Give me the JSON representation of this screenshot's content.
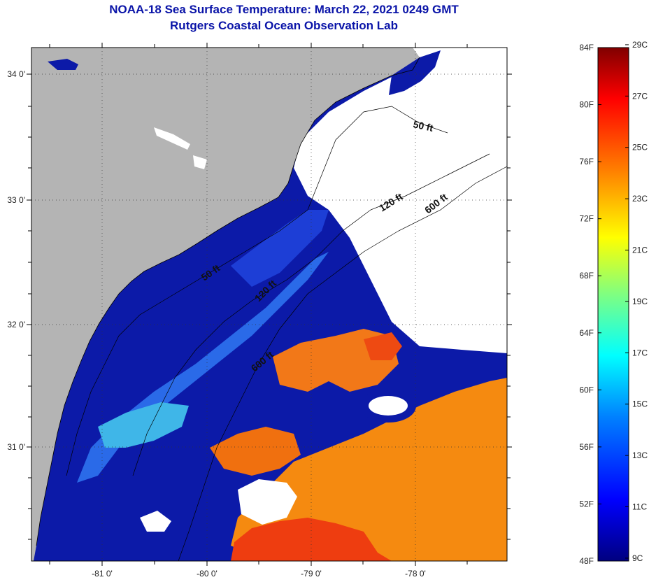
{
  "title": {
    "line1": "NOAA-18 Sea Surface Temperature:  March 22, 2021 0249 GMT",
    "line2": "Rutgers Coastal Ocean Observation Lab"
  },
  "map": {
    "lat_labels": [
      "34 0'",
      "33 0'",
      "32 0'",
      "31 0'"
    ],
    "lon_labels": [
      "-81 0'",
      "-80 0'",
      "-79 0'",
      "-78 0'"
    ],
    "contour_labels": [
      "50 ft",
      "120 ft",
      "600 ft",
      "50 ft",
      "120 ft",
      "600 ft"
    ],
    "colors": {
      "land": "#b4b4b4",
      "cold": "#0c1aa8",
      "warm": "#f58a10",
      "hot": "#ee3d10",
      "cloud": "#ffffff"
    }
  },
  "colorbar": {
    "fahrenheit": [
      "84F",
      "80F",
      "76F",
      "72F",
      "68F",
      "64F",
      "60F",
      "56F",
      "52F",
      "48F"
    ],
    "celsius": [
      "29C",
      "27C",
      "25C",
      "23C",
      "21C",
      "19C",
      "17C",
      "15C",
      "13C",
      "11C",
      "9C"
    ],
    "stops": [
      "#000080",
      "#0000ff",
      "#0080ff",
      "#00ffff",
      "#80ff80",
      "#ffff00",
      "#ff8000",
      "#ff0000",
      "#800000"
    ]
  }
}
